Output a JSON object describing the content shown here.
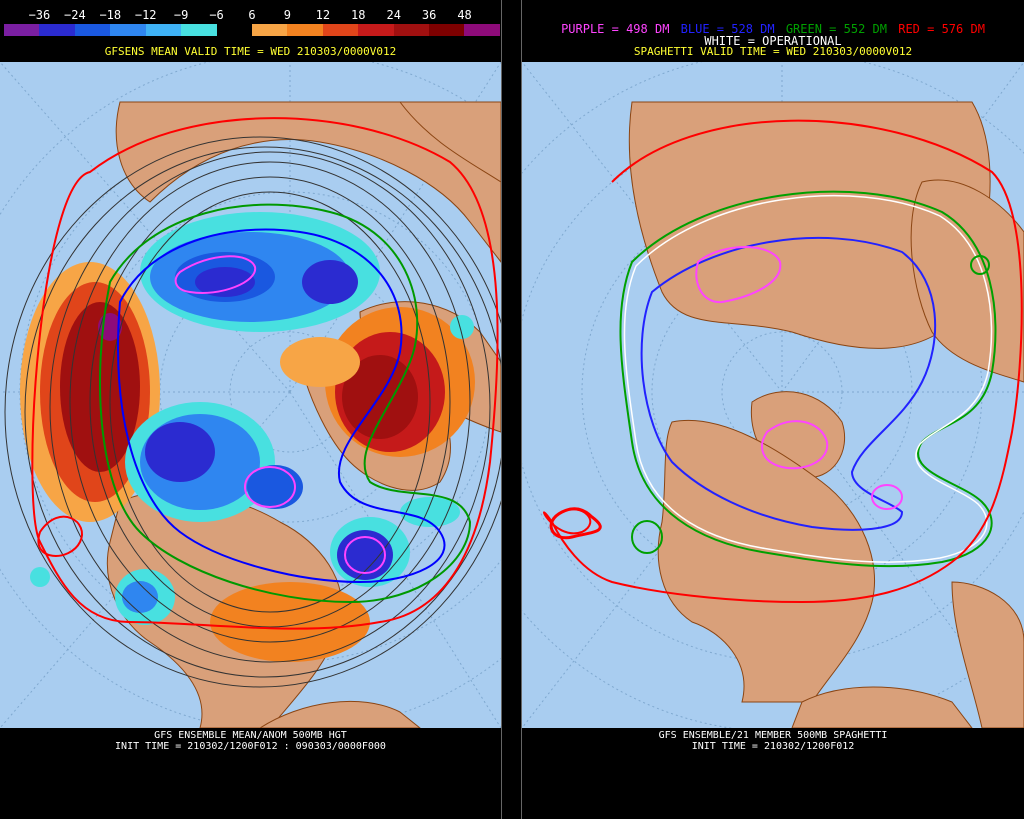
{
  "left": {
    "colorbar_labels": [
      "−36",
      "−24",
      "−18",
      "−12",
      "−9",
      "−6",
      "6",
      "9",
      "12",
      "18",
      "24",
      "36",
      "48"
    ],
    "colorbar_colors": [
      "#7b1fa2",
      "#2b2bd0",
      "#1a58e0",
      "#2f86f0",
      "#3fb2f5",
      "#48e0e0",
      "#000000",
      "#f7a546",
      "#f28220",
      "#e0451a",
      "#c51a1a",
      "#a01010",
      "#7d0000",
      "#8e0b7a"
    ],
    "title": "GFSENS MEAN VALID TIME = WED 210303/0000V012",
    "footer_line1": "GFS ENSEMBLE MEAN/ANOM 500MB HGT",
    "footer_line2": "INIT TIME = 210302/1200F012 : 090303/0000F000"
  },
  "right": {
    "legend": {
      "purple": "PURPLE = 498 DM",
      "blue": "BLUE = 528 DM",
      "green": "GREEN = 552 DM",
      "red": "RED = 576 DM"
    },
    "operational": "WHITE = OPERATIONAL",
    "title": "SPAGHETTI VALID TIME = WED 210303/0000V012",
    "footer_line1": "GFS ENSEMBLE/21 MEMBER 500MB SPAGHETTI",
    "footer_line2": "INIT TIME = 210302/1200F012"
  },
  "colors": {
    "ocean": "#a9cdf0",
    "land": "#d9a07a",
    "border": "#8b4513",
    "purple": "#ff44ff",
    "blue": "#0000ff",
    "green": "#009900",
    "red": "#ff0000",
    "yellow": "#ffff33"
  }
}
